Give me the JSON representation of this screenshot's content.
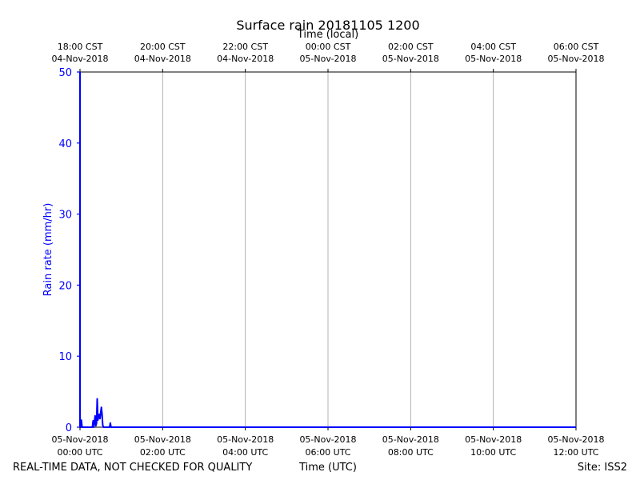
{
  "chart_data": {
    "type": "line",
    "title": "Surface rain 20181105 1200",
    "xlabel": "Time (UTC)",
    "top_xlabel": "Time (local)",
    "ylabel": "Rain rate (mm/hr)",
    "ylim": [
      0,
      50
    ],
    "yticks": [
      0,
      10,
      20,
      30,
      40,
      50
    ],
    "x_range_utc": [
      "2018-11-05 00:00",
      "2018-11-05 12:00"
    ],
    "bottom_ticks": [
      {
        "t": "2018-11-05 00:00",
        "line1": "05-Nov-2018",
        "line2": "00:00 UTC"
      },
      {
        "t": "2018-11-05 02:00",
        "line1": "05-Nov-2018",
        "line2": "02:00 UTC"
      },
      {
        "t": "2018-11-05 04:00",
        "line1": "05-Nov-2018",
        "line2": "04:00 UTC"
      },
      {
        "t": "2018-11-05 06:00",
        "line1": "05-Nov-2018",
        "line2": "06:00 UTC"
      },
      {
        "t": "2018-11-05 08:00",
        "line1": "05-Nov-2018",
        "line2": "08:00 UTC"
      },
      {
        "t": "2018-11-05 10:00",
        "line1": "05-Nov-2018",
        "line2": "10:00 UTC"
      },
      {
        "t": "2018-11-05 12:00",
        "line1": "05-Nov-2018",
        "line2": "12:00 UTC"
      }
    ],
    "top_ticks": [
      {
        "t": "2018-11-05 00:00",
        "line1": "18:00 CST",
        "line2": "04-Nov-2018"
      },
      {
        "t": "2018-11-05 02:00",
        "line1": "20:00 CST",
        "line2": "04-Nov-2018"
      },
      {
        "t": "2018-11-05 04:00",
        "line1": "22:00 CST",
        "line2": "04-Nov-2018"
      },
      {
        "t": "2018-11-05 06:00",
        "line1": "00:00 CST",
        "line2": "05-Nov-2018"
      },
      {
        "t": "2018-11-05 08:00",
        "line1": "02:00 CST",
        "line2": "05-Nov-2018"
      },
      {
        "t": "2018-11-05 10:00",
        "line1": "04:00 CST",
        "line2": "05-Nov-2018"
      },
      {
        "t": "2018-11-05 12:00",
        "line1": "06:00 CST",
        "line2": "05-Nov-2018"
      }
    ],
    "grid": true,
    "series": [
      {
        "color": "#0000ff",
        "points": [
          [
            "2018-11-05 00:00",
            50.0
          ],
          [
            "2018-11-05 00:00",
            0.0
          ],
          [
            "2018-11-05 00:01",
            0.0
          ],
          [
            "2018-11-05 00:02",
            1.0
          ],
          [
            "2018-11-05 00:03",
            0.0
          ],
          [
            "2018-11-05 00:18",
            0.0
          ],
          [
            "2018-11-05 00:19",
            0.9
          ],
          [
            "2018-11-05 00:20",
            0.0
          ],
          [
            "2018-11-05 00:22",
            1.6
          ],
          [
            "2018-11-05 00:23",
            0.2
          ],
          [
            "2018-11-05 00:24",
            0.6
          ],
          [
            "2018-11-05 00:25",
            4.0
          ],
          [
            "2018-11-05 00:26",
            1.0
          ],
          [
            "2018-11-05 00:27",
            1.5
          ],
          [
            "2018-11-05 00:28",
            1.8
          ],
          [
            "2018-11-05 00:29",
            1.2
          ],
          [
            "2018-11-05 00:31",
            2.8
          ],
          [
            "2018-11-05 00:32",
            1.8
          ],
          [
            "2018-11-05 00:33",
            0.3
          ],
          [
            "2018-11-05 00:34",
            0.0
          ],
          [
            "2018-11-05 00:43",
            0.0
          ],
          [
            "2018-11-05 00:44",
            0.6
          ],
          [
            "2018-11-05 00:45",
            0.0
          ],
          [
            "2018-11-05 12:00",
            0.0
          ]
        ]
      }
    ]
  },
  "colors": {
    "series": "#0000ff",
    "left_axis": "#0000ff",
    "grid": "#b0b0b0",
    "frame": "#000000"
  },
  "footer": {
    "left": "REAL-TIME DATA, NOT CHECKED FOR QUALITY",
    "right": "Site: ISS2"
  }
}
